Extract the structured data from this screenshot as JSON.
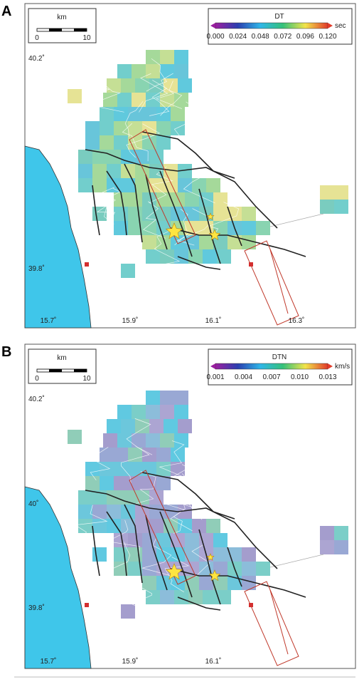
{
  "panels": [
    {
      "label": "A",
      "scale_bar": {
        "unit": "km",
        "ticks": [
          "0",
          "10"
        ]
      },
      "colorbar": {
        "title": "DT",
        "unit": "sec",
        "ticks": [
          "0.000",
          "0.024",
          "0.048",
          "0.072",
          "0.096",
          "0.120"
        ]
      },
      "lat_labels": [
        "40.2˚",
        "39.8˚"
      ],
      "lon_labels": [
        "15.7˚",
        "15.9˚",
        "16.1˚",
        "16.3˚"
      ]
    },
    {
      "label": "B",
      "scale_bar": {
        "unit": "km",
        "ticks": [
          "0",
          "10"
        ]
      },
      "colorbar": {
        "title": "DTN",
        "unit": "km/s",
        "ticks": [
          "0.001",
          "0.004",
          "0.007",
          "0.010",
          "0.013"
        ]
      },
      "lat_labels": [
        "40.2˚",
        "40˚",
        "39.8˚"
      ],
      "lon_labels": [
        "15.7˚",
        "15.9˚",
        "16.1˚"
      ]
    }
  ]
}
